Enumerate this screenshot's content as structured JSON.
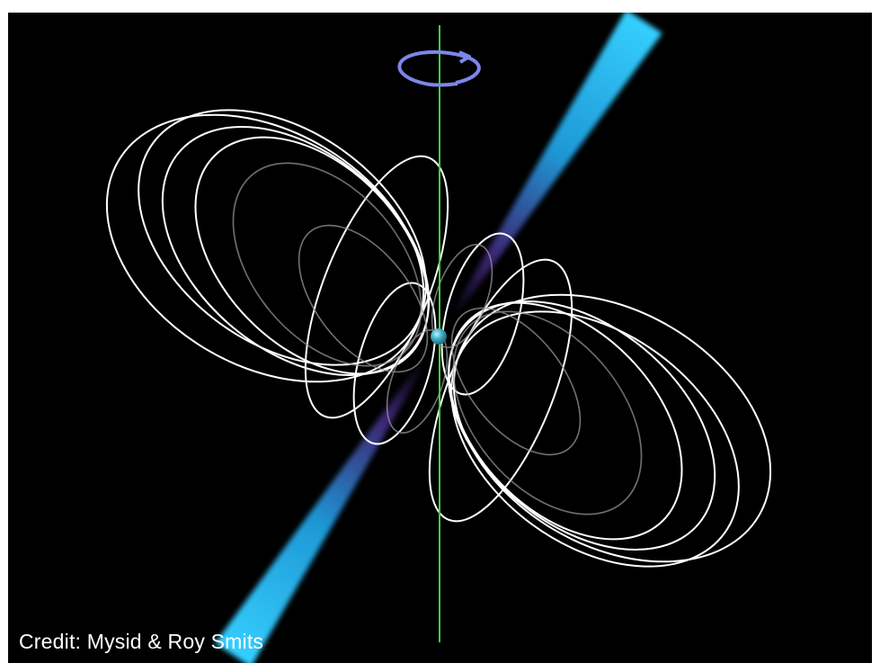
{
  "credit": "Credit: Mysid & Roy Smits",
  "colors": {
    "background": "#000000",
    "beam": "#2fc7f5",
    "beam_core": "#5b3f9e",
    "field_lines": "#ffffff",
    "rotation_axis": "#3fd13f",
    "rotation_arrow": "#7d86e8",
    "star": "#3aa7b8"
  },
  "icons": {
    "rotation": "rotation-arrow-icon",
    "star": "neutron-star-icon"
  }
}
